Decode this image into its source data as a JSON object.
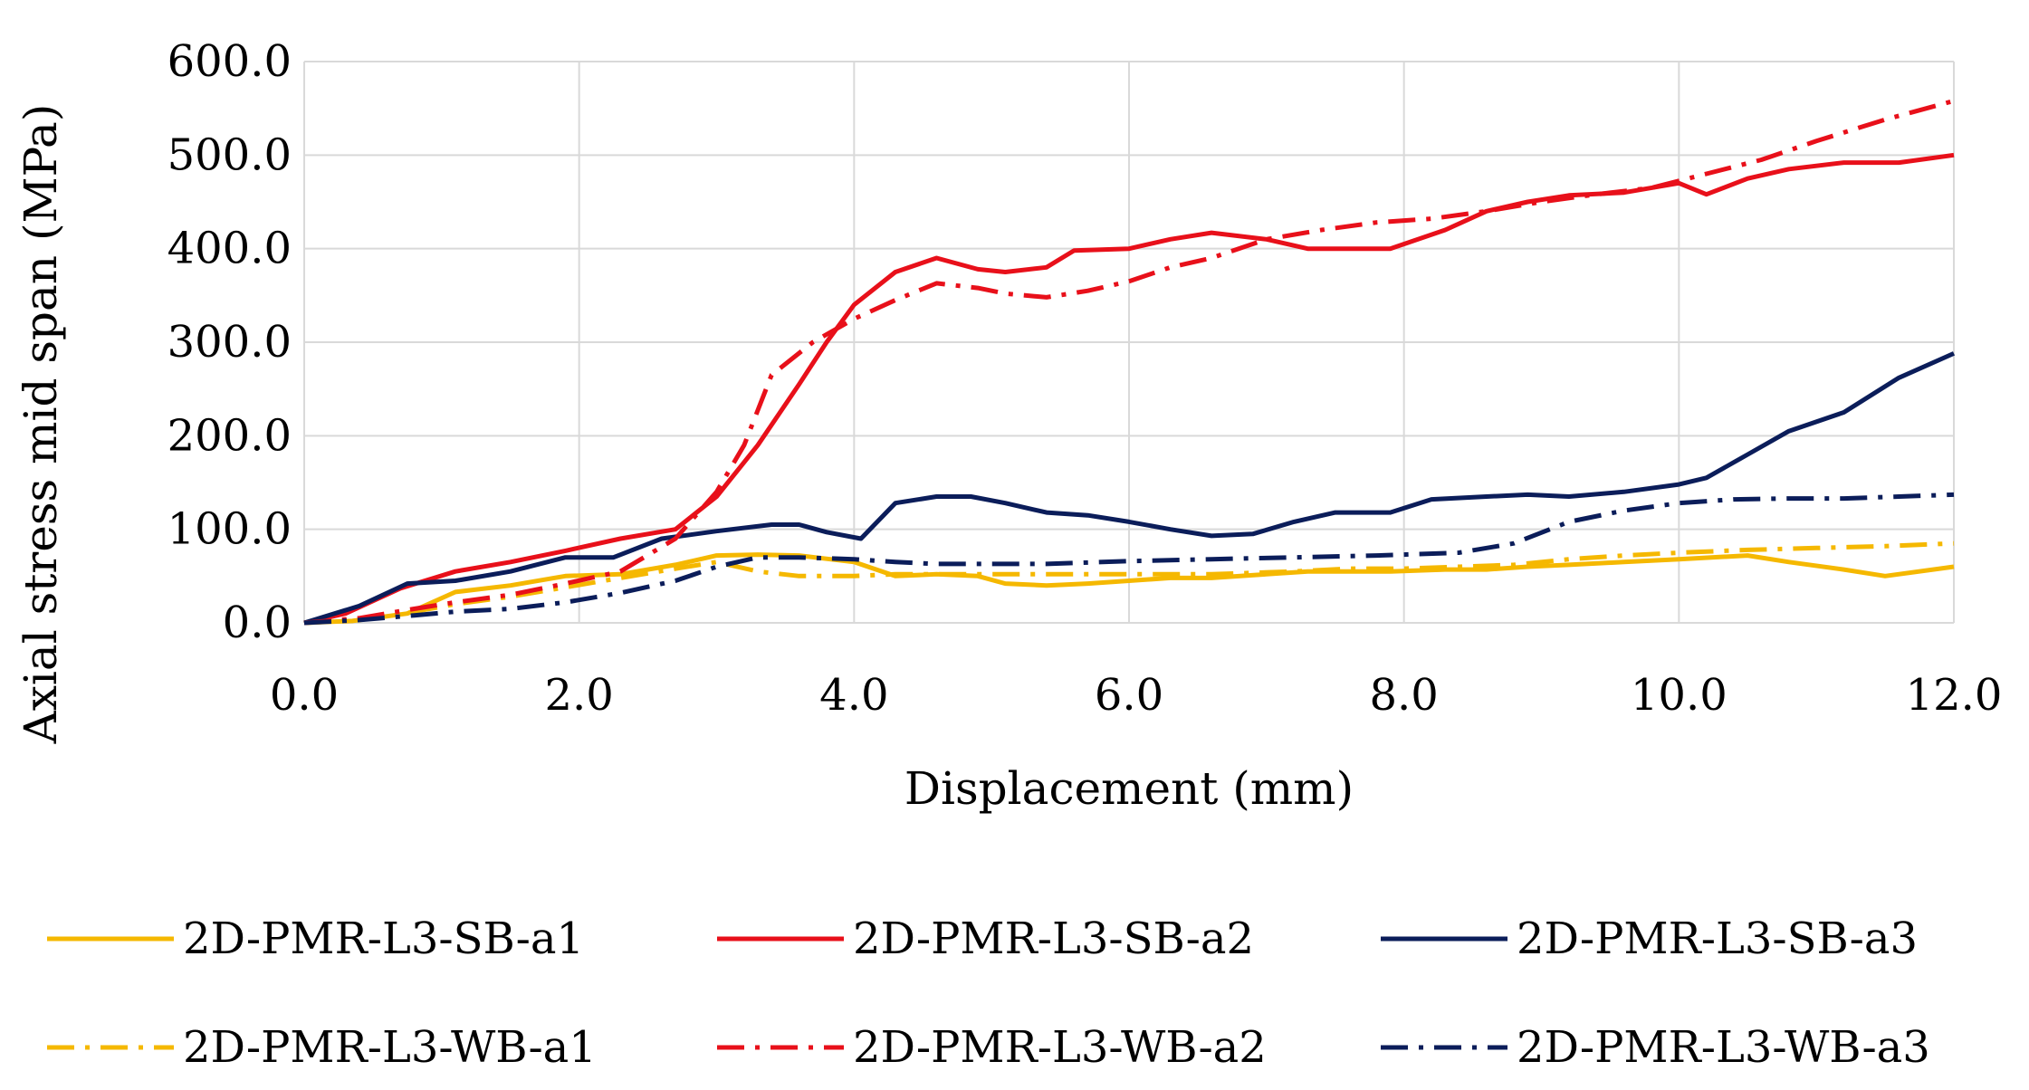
{
  "chart_data": {
    "type": "line",
    "title": "",
    "xlabel": "Displacement (mm)",
    "ylabel": "Axial stress mid span (MPa)",
    "xlim": [
      0,
      12
    ],
    "ylim": [
      0,
      600
    ],
    "xticks": [
      0,
      2,
      4,
      6,
      8,
      10,
      12
    ],
    "yticks": [
      0,
      100,
      200,
      300,
      400,
      500,
      600
    ],
    "xtick_labels": [
      "0.0",
      "2.0",
      "4.0",
      "6.0",
      "8.0",
      "10.0",
      "12.0"
    ],
    "ytick_labels": [
      "0.0",
      "100.0",
      "200.0",
      "300.0",
      "400.0",
      "500.0",
      "600.0"
    ],
    "grid": true,
    "legend_position": "bottom",
    "series": [
      {
        "name": "2D-PMR-L3-SB-a1",
        "color": "#F5B800",
        "style": "solid",
        "x": [
          0,
          0.35,
          0.75,
          1.1,
          1.5,
          1.9,
          2.3,
          2.7,
          3.0,
          3.3,
          3.6,
          4.0,
          4.3,
          4.6,
          4.9,
          5.1,
          5.4,
          5.7,
          6.0,
          6.3,
          6.6,
          7.0,
          7.3,
          7.6,
          7.9,
          8.3,
          8.6,
          8.9,
          9.2,
          9.6,
          10.0,
          10.5,
          10.8,
          11.2,
          11.5,
          12.0
        ],
        "y": [
          0,
          2,
          10,
          33,
          40,
          50,
          52,
          62,
          72,
          73,
          72,
          65,
          50,
          52,
          50,
          42,
          40,
          42,
          45,
          48,
          48,
          52,
          55,
          55,
          55,
          57,
          57,
          60,
          62,
          65,
          68,
          72,
          65,
          57,
          50,
          60
        ]
      },
      {
        "name": "2D-PMR-L3-SB-a2",
        "color": "#E8101A",
        "style": "solid",
        "x": [
          0,
          0.3,
          0.7,
          1.1,
          1.5,
          1.9,
          2.3,
          2.7,
          3.0,
          3.3,
          3.6,
          3.8,
          4.0,
          4.3,
          4.6,
          4.9,
          5.1,
          5.4,
          5.6,
          6.0,
          6.3,
          6.6,
          7.0,
          7.3,
          7.6,
          7.9,
          8.3,
          8.6,
          8.9,
          9.2,
          9.6,
          10.0,
          10.2,
          10.5,
          10.8,
          11.2,
          11.6,
          12.0
        ],
        "y": [
          0,
          10,
          37,
          55,
          65,
          77,
          90,
          100,
          135,
          190,
          255,
          300,
          340,
          375,
          390,
          378,
          375,
          380,
          398,
          400,
          410,
          417,
          410,
          400,
          400,
          400,
          420,
          440,
          450,
          457,
          460,
          470,
          458,
          475,
          485,
          492,
          492,
          500
        ]
      },
      {
        "name": "2D-PMR-L3-SB-a3",
        "color": "#0B1D5A",
        "style": "solid",
        "x": [
          0,
          0.4,
          0.75,
          1.1,
          1.5,
          1.9,
          2.25,
          2.6,
          3.0,
          3.4,
          3.6,
          3.8,
          4.05,
          4.3,
          4.6,
          4.85,
          5.1,
          5.4,
          5.7,
          6.0,
          6.3,
          6.6,
          6.9,
          7.2,
          7.5,
          7.9,
          8.2,
          8.6,
          8.9,
          9.2,
          9.6,
          10.0,
          10.2,
          10.5,
          10.8,
          11.2,
          11.6,
          12.0
        ],
        "y": [
          0,
          18,
          42,
          45,
          55,
          70,
          70,
          90,
          98,
          105,
          105,
          97,
          90,
          128,
          135,
          135,
          128,
          118,
          115,
          108,
          100,
          93,
          95,
          108,
          118,
          118,
          132,
          135,
          137,
          135,
          140,
          148,
          155,
          180,
          205,
          225,
          262,
          288
        ]
      },
      {
        "name": "2D-PMR-L3-WB-a1",
        "color": "#F5B800",
        "style": "dashdot",
        "x": [
          0,
          0.4,
          0.8,
          1.1,
          1.5,
          1.9,
          2.3,
          2.7,
          3.0,
          3.3,
          3.6,
          4.0,
          4.3,
          4.6,
          5.0,
          5.4,
          6.0,
          6.6,
          7.2,
          7.6,
          8.0,
          8.4,
          8.8,
          9.2,
          9.6,
          10.0,
          10.5,
          11.0,
          11.5,
          12.0
        ],
        "y": [
          0,
          3,
          12,
          20,
          28,
          38,
          48,
          58,
          65,
          55,
          50,
          50,
          52,
          52,
          52,
          52,
          52,
          52,
          55,
          58,
          58,
          60,
          62,
          68,
          72,
          75,
          78,
          80,
          82,
          85
        ]
      },
      {
        "name": "2D-PMR-L3-WB-a2",
        "color": "#E8101A",
        "style": "dashdot",
        "x": [
          0,
          0.4,
          0.8,
          1.1,
          1.5,
          1.9,
          2.3,
          2.7,
          3.0,
          3.2,
          3.4,
          3.7,
          4.0,
          4.3,
          4.6,
          4.9,
          5.1,
          5.4,
          5.7,
          6.0,
          6.3,
          6.6,
          7.0,
          7.4,
          7.8,
          8.2,
          8.6,
          9.0,
          9.4,
          9.8,
          10.2,
          10.6,
          11.0,
          11.5,
          12.0
        ],
        "y": [
          0,
          5,
          15,
          22,
          30,
          42,
          55,
          90,
          140,
          190,
          265,
          300,
          325,
          345,
          363,
          358,
          352,
          348,
          355,
          365,
          380,
          390,
          410,
          420,
          428,
          432,
          440,
          450,
          458,
          465,
          480,
          495,
          515,
          538,
          558
        ]
      },
      {
        "name": "2D-PMR-L3-WB-a3",
        "color": "#0B1D5A",
        "style": "dashdot",
        "x": [
          0,
          0.4,
          0.8,
          1.1,
          1.5,
          1.9,
          2.3,
          2.7,
          3.0,
          3.3,
          3.6,
          4.0,
          4.3,
          4.6,
          5.0,
          5.4,
          6.0,
          6.6,
          7.2,
          7.8,
          8.4,
          8.8,
          9.2,
          9.6,
          10.0,
          10.4,
          10.8,
          11.2,
          11.6,
          12.0
        ],
        "y": [
          0,
          3,
          8,
          12,
          15,
          22,
          32,
          45,
          60,
          70,
          70,
          68,
          65,
          63,
          63,
          63,
          66,
          68,
          70,
          72,
          75,
          85,
          108,
          120,
          128,
          132,
          133,
          133,
          135,
          137
        ]
      }
    ]
  }
}
